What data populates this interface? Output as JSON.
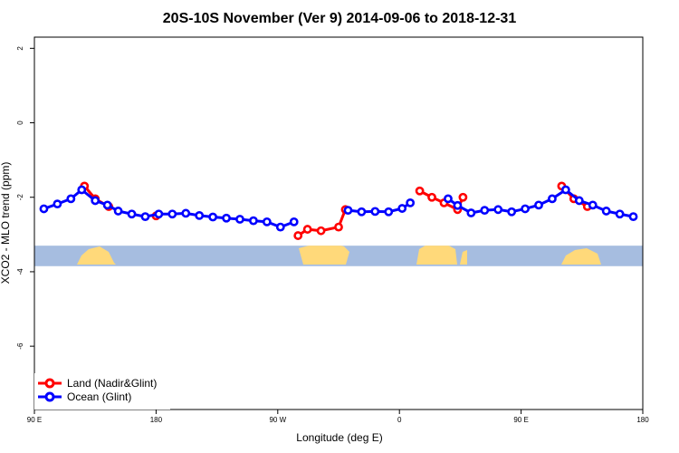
{
  "chart_data": {
    "type": "line",
    "title": "20S-10S November (Ver 9)   2014-09-06 to 2018-12-31",
    "xlabel": "Longitude (deg E)",
    "ylabel": "XCO2 - MLO trend (ppm)",
    "xlim": [
      90,
      540
    ],
    "ylim": [
      -7.7,
      2.3
    ],
    "x_ticks": [
      {
        "value": 90,
        "label": "90 E"
      },
      {
        "value": 180,
        "label": "180"
      },
      {
        "value": 270,
        "label": "90 W"
      },
      {
        "value": 360,
        "label": "0"
      },
      {
        "value": 450,
        "label": "90 E"
      },
      {
        "value": 540,
        "label": "180"
      }
    ],
    "y_ticks": [
      {
        "value": 2,
        "label": "2"
      },
      {
        "value": 0,
        "label": "0"
      },
      {
        "value": -2,
        "label": "-2"
      },
      {
        "value": -4,
        "label": "-4"
      },
      {
        "value": -6,
        "label": "-6"
      }
    ],
    "grid": false,
    "legend_position": "bottom-left",
    "series": [
      {
        "name": "Land (Nadir&Glint)",
        "color": "#ff0000",
        "segments": [
          [
            [
              127,
              -1.7
            ],
            [
              135,
              -2.04
            ],
            [
              145,
              -2.25
            ]
          ],
          [
            [
              180,
              -2.5
            ]
          ],
          [
            [
              285,
              -3.03
            ],
            [
              292,
              -2.86
            ],
            [
              302,
              -2.9
            ],
            [
              315,
              -2.8
            ],
            [
              320,
              -2.33
            ]
          ],
          [
            [
              375,
              -1.83
            ],
            [
              384,
              -2.0
            ],
            [
              393,
              -2.15
            ],
            [
              403,
              -2.33
            ],
            [
              407,
              -2.0
            ]
          ],
          [
            [
              480,
              -1.7
            ],
            [
              489,
              -2.04
            ],
            [
              499,
              -2.25
            ]
          ]
        ]
      },
      {
        "name": "Ocean (Glint)",
        "color": "#0000ff",
        "segments": [
          [
            [
              97,
              -2.31
            ],
            [
              107,
              -2.18
            ],
            [
              117,
              -2.04
            ],
            [
              125,
              -1.8
            ],
            [
              135,
              -2.09
            ],
            [
              144,
              -2.21
            ],
            [
              152,
              -2.37
            ],
            [
              162,
              -2.45
            ],
            [
              172,
              -2.52
            ],
            [
              182,
              -2.45
            ],
            [
              192,
              -2.45
            ],
            [
              202,
              -2.43
            ],
            [
              212,
              -2.49
            ],
            [
              222,
              -2.53
            ],
            [
              232,
              -2.56
            ],
            [
              242,
              -2.59
            ],
            [
              252,
              -2.63
            ],
            [
              262,
              -2.66
            ],
            [
              272,
              -2.8
            ],
            [
              282,
              -2.66
            ]
          ],
          [
            [
              322,
              -2.35
            ],
            [
              332,
              -2.39
            ],
            [
              342,
              -2.38
            ],
            [
              352,
              -2.39
            ],
            [
              362,
              -2.3
            ],
            [
              368,
              -2.15
            ]
          ],
          [
            [
              396,
              -2.04
            ],
            [
              403,
              -2.22
            ],
            [
              413,
              -2.42
            ],
            [
              423,
              -2.35
            ],
            [
              433,
              -2.33
            ],
            [
              443,
              -2.39
            ],
            [
              453,
              -2.31
            ],
            [
              463,
              -2.21
            ],
            [
              473,
              -2.04
            ],
            [
              483,
              -1.8
            ],
            [
              493,
              -2.09
            ],
            [
              503,
              -2.21
            ],
            [
              513,
              -2.37
            ],
            [
              523,
              -2.45
            ],
            [
              533,
              -2.52
            ]
          ]
        ]
      }
    ],
    "background_band": {
      "y_top": -3.3,
      "y_bottom": -3.85,
      "ocean_color": "#a6bde0",
      "land_color": "#ffd97a"
    }
  }
}
